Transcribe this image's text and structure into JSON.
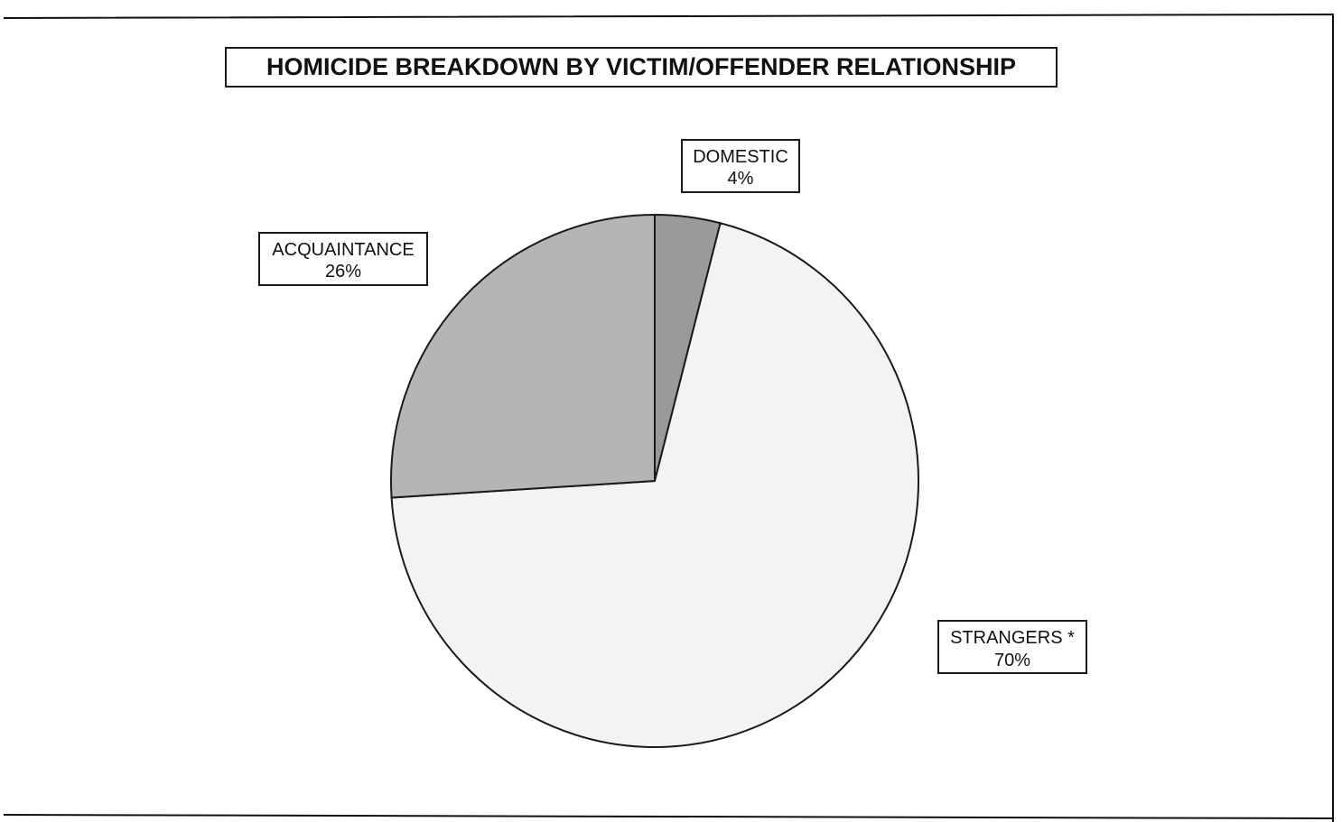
{
  "chart_data": {
    "type": "pie",
    "title": "HOMICIDE BREAKDOWN BY VICTIM/OFFENDER RELATIONSHIP",
    "slices": [
      {
        "label": "DOMESTIC",
        "value": 4,
        "value_label": "4%",
        "color": "#9a9a9a"
      },
      {
        "label": "STRANGERS *",
        "value": 70,
        "value_label": "70%",
        "color": "#f3f3f3"
      },
      {
        "label": "ACQUAINTANCE",
        "value": 26,
        "value_label": "26%",
        "color": "#b5b5b5"
      }
    ],
    "start_angle": "12 o'clock",
    "direction": "clockwise",
    "border_color": "#1a1a1a"
  }
}
